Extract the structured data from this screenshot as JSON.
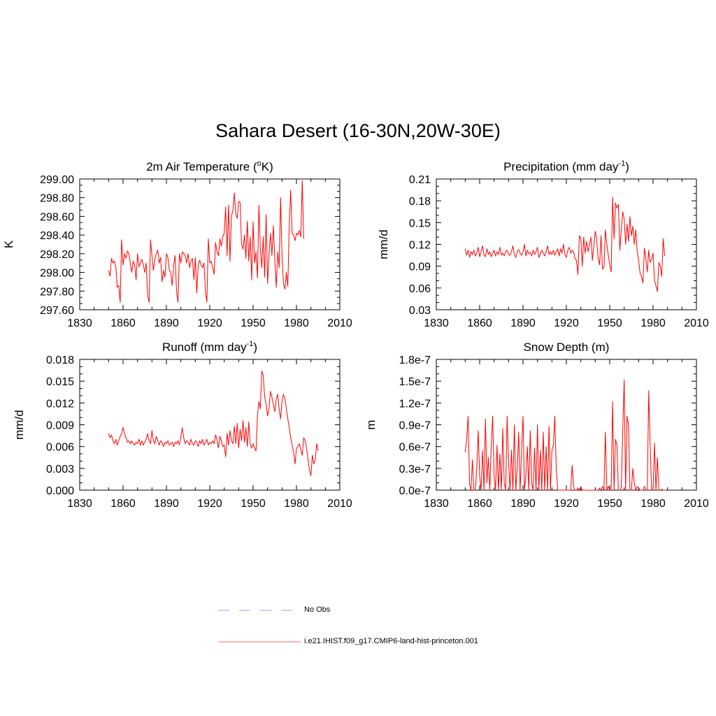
{
  "figure": {
    "title": "Sahara Desert (16-30N,20W-30E)",
    "colors": {
      "model": "#ff0000",
      "obs": "#9aa0ff",
      "axis": "#000000"
    }
  },
  "legend": {
    "items": [
      {
        "label": "No Obs",
        "style": "dashed",
        "color": "#9aa0ff"
      },
      {
        "label": "i.e21.IHIST.f09_g17.CMIP6-land-hist-princeton.001",
        "style": "solid",
        "color": "#ff0000"
      }
    ]
  },
  "chart_data": [
    {
      "type": "line",
      "title": "2m Air Temperature (°K)",
      "ylabel": "K",
      "xlim": [
        1830,
        2010
      ],
      "ylim": [
        297.6,
        299.0
      ],
      "xticks": [
        1830,
        1860,
        1890,
        1920,
        1950,
        1980,
        2010
      ],
      "yticks": [
        297.6,
        297.8,
        298.0,
        298.2,
        298.4,
        298.6,
        298.8,
        299.0
      ],
      "ytick_labels": [
        "297.60",
        "297.80",
        "298.00",
        "298.20",
        "298.40",
        "298.60",
        "298.80",
        "299.00"
      ],
      "series": [
        {
          "x_start": 1850,
          "x_step": 1,
          "values": [
            298.02,
            297.96,
            298.15,
            298.1,
            298.12,
            298.06,
            297.84,
            297.86,
            297.68,
            298.35,
            298.08,
            298.2,
            298.15,
            298.23,
            298.2,
            298.1,
            298.0,
            298.12,
            298.08,
            297.92,
            298.2,
            298.06,
            298.1,
            298.14,
            298.08,
            298.0,
            298.1,
            297.75,
            297.68,
            298.35,
            298.18,
            298.02,
            298.14,
            298.2,
            298.24,
            298.1,
            298.16,
            297.9,
            298.02,
            297.95,
            298.2,
            298.16,
            298.02,
            298.0,
            297.86,
            298.08,
            298.18,
            297.8,
            297.68,
            298.2,
            298.1,
            298.22,
            298.2,
            298.18,
            298.1,
            298.2,
            298.05,
            298.12,
            298.15,
            297.92,
            298.16,
            297.78,
            298.08,
            298.13,
            298.08,
            298.05,
            298.1,
            297.8,
            297.68,
            298.36,
            298.1,
            298.12,
            298.05,
            297.98,
            298.32,
            298.22,
            298.18,
            298.36,
            298.28,
            298.38,
            298.42,
            298.7,
            298.18,
            298.72,
            298.12,
            298.6,
            298.66,
            298.85,
            298.62,
            298.58,
            298.76,
            298.75,
            298.3,
            298.25,
            298.4,
            298.15,
            298.55,
            298.12,
            298.38,
            297.92,
            298.54,
            298.1,
            298.22,
            297.94,
            298.72,
            298.25,
            298.05,
            298.38,
            297.95,
            298.62,
            297.88,
            298.18,
            298.42,
            298.18,
            298.5,
            298.14,
            297.84,
            298.22,
            298.05,
            298.8,
            298.18,
            297.88,
            297.82,
            298.0,
            297.85,
            298.5,
            298.88,
            298.42,
            298.4,
            298.34,
            298.42,
            298.4,
            298.45,
            298.38,
            298.98,
            298.36
          ]
        }
      ]
    },
    {
      "type": "line",
      "title": "Precipitation (mm day-1)",
      "ylabel": "mm/d",
      "xlim": [
        1830,
        2010
      ],
      "ylim": [
        0.03,
        0.21
      ],
      "xticks": [
        1830,
        1860,
        1890,
        1920,
        1950,
        1980,
        2010
      ],
      "yticks": [
        0.03,
        0.06,
        0.09,
        0.12,
        0.15,
        0.18,
        0.21
      ],
      "ytick_labels": [
        "0.03",
        "0.06",
        "0.09",
        "0.12",
        "0.15",
        "0.18",
        "0.21"
      ],
      "series": [
        {
          "x_start": 1850,
          "x_step": 1,
          "values": [
            0.114,
            0.105,
            0.112,
            0.102,
            0.11,
            0.106,
            0.112,
            0.104,
            0.108,
            0.116,
            0.103,
            0.11,
            0.118,
            0.106,
            0.103,
            0.114,
            0.106,
            0.11,
            0.103,
            0.108,
            0.112,
            0.104,
            0.11,
            0.106,
            0.116,
            0.105,
            0.108,
            0.104,
            0.11,
            0.112,
            0.106,
            0.105,
            0.11,
            0.118,
            0.106,
            0.102,
            0.11,
            0.113,
            0.108,
            0.105,
            0.11,
            0.12,
            0.104,
            0.112,
            0.107,
            0.109,
            0.104,
            0.112,
            0.106,
            0.11,
            0.116,
            0.102,
            0.107,
            0.112,
            0.108,
            0.104,
            0.11,
            0.118,
            0.106,
            0.11,
            0.106,
            0.112,
            0.105,
            0.11,
            0.114,
            0.104,
            0.114,
            0.108,
            0.12,
            0.106,
            0.102,
            0.112,
            0.116,
            0.108,
            0.112,
            0.11,
            0.1,
            0.098,
            0.078,
            0.132,
            0.128,
            0.09,
            0.13,
            0.108,
            0.124,
            0.11,
            0.12,
            0.13,
            0.098,
            0.118,
            0.138,
            0.126,
            0.1,
            0.092,
            0.132,
            0.086,
            0.088,
            0.14,
            0.12,
            0.105,
            0.092,
            0.082,
            0.185,
            0.128,
            0.177,
            0.17,
            0.175,
            0.112,
            0.14,
            0.165,
            0.155,
            0.12,
            0.148,
            0.124,
            0.158,
            0.132,
            0.145,
            0.12,
            0.14,
            0.11,
            0.098,
            0.08,
            0.076,
            0.067,
            0.115,
            0.1,
            0.082,
            0.112,
            0.095,
            0.1,
            0.108,
            0.07,
            0.063,
            0.055,
            0.095,
            0.09,
            0.076,
            0.128,
            0.104
          ]
        }
      ]
    },
    {
      "type": "line",
      "title": "Runoff (mm day-1)",
      "ylabel": "mm/d",
      "xlim": [
        1830,
        2010
      ],
      "ylim": [
        0.0,
        0.018
      ],
      "xticks": [
        1830,
        1860,
        1890,
        1920,
        1950,
        1980,
        2010
      ],
      "yticks": [
        0.0,
        0.003,
        0.006,
        0.009,
        0.012,
        0.015,
        0.018
      ],
      "ytick_labels": [
        "0.000",
        "0.003",
        "0.006",
        "0.009",
        "0.012",
        "0.015",
        "0.018"
      ],
      "series": [
        {
          "x_start": 1850,
          "x_step": 1,
          "values": [
            0.0078,
            0.0072,
            0.0076,
            0.0068,
            0.0064,
            0.007,
            0.0062,
            0.0068,
            0.0074,
            0.0078,
            0.0086,
            0.0078,
            0.0072,
            0.0066,
            0.0068,
            0.0064,
            0.0068,
            0.0064,
            0.0062,
            0.0066,
            0.0064,
            0.007,
            0.0062,
            0.0068,
            0.0062,
            0.0066,
            0.007,
            0.0078,
            0.0068,
            0.0064,
            0.0082,
            0.0068,
            0.0064,
            0.0074,
            0.0068,
            0.0062,
            0.0068,
            0.0066,
            0.006,
            0.0066,
            0.0064,
            0.0068,
            0.0062,
            0.0064,
            0.0066,
            0.006,
            0.0066,
            0.0064,
            0.0068,
            0.0062,
            0.0074,
            0.0086,
            0.0072,
            0.0064,
            0.0068,
            0.0066,
            0.0062,
            0.007,
            0.0064,
            0.0062,
            0.0068,
            0.0066,
            0.006,
            0.0068,
            0.0064,
            0.007,
            0.0062,
            0.0066,
            0.007,
            0.0062,
            0.0066,
            0.0064,
            0.0068,
            0.0064,
            0.0076,
            0.007,
            0.0058,
            0.0074,
            0.0068,
            0.006,
            0.0062,
            0.0046,
            0.0078,
            0.0062,
            0.0082,
            0.0068,
            0.0064,
            0.0088,
            0.0064,
            0.0092,
            0.0058,
            0.0084,
            0.0068,
            0.0096,
            0.0066,
            0.0086,
            0.006,
            0.0094,
            0.0062,
            0.0058,
            0.0064,
            0.0058,
            0.0054,
            0.0102,
            0.0122,
            0.0112,
            0.0164,
            0.0158,
            0.0128,
            0.0118,
            0.0102,
            0.0112,
            0.0136,
            0.0128,
            0.0118,
            0.0108,
            0.0126,
            0.0132,
            0.0112,
            0.0098,
            0.0122,
            0.0132,
            0.0126,
            0.0112,
            0.0098,
            0.0086,
            0.0072,
            0.0062,
            0.0052,
            0.0036,
            0.0058,
            0.006,
            0.0064,
            0.0056,
            0.0048,
            0.0072,
            0.0068,
            0.0058,
            0.0042,
            0.0028,
            0.002,
            0.0048,
            0.0036,
            0.0042,
            0.0064,
            0.0054
          ]
        }
      ]
    },
    {
      "type": "line",
      "title": "Snow Depth (m)",
      "ylabel": "m",
      "xlim": [
        1830,
        2010
      ],
      "ylim": [
        0.0,
        1.8e-07
      ],
      "xticks": [
        1830,
        1860,
        1890,
        1920,
        1950,
        1980,
        2010
      ],
      "yticks": [
        0.0,
        3e-08,
        6e-08,
        9e-08,
        1.2e-07,
        1.5e-07,
        1.8e-07
      ],
      "ytick_labels": [
        "0.0e-7",
        "0.3e-7",
        "0.6e-7",
        "0.9e-7",
        "1.2e-7",
        "1.5e-7",
        "1.8e-7"
      ],
      "series": [
        {
          "x_start": 1850,
          "x_step": 1,
          "values": [
            5.2e-08,
            7e-08,
            1.02e-07,
            8e-09,
            0.0,
            4.2e-08,
            0.0,
            0.0,
            3e-08,
            8.2e-08,
            2e-08,
            0.0,
            5.5e-08,
            0.0,
            9.8e-08,
            1e-08,
            4.5e-08,
            0.0,
            6e-08,
            1.02e-07,
            2e-08,
            0.0,
            6.2e-08,
            0.0,
            5e-08,
            0.0,
            8.5e-08,
            1e-08,
            0.0,
            1.02e-07,
            4e-08,
            0.0,
            5.5e-08,
            0.0,
            9e-08,
            0.0,
            3e-08,
            8e-08,
            0.0,
            5.5e-08,
            1.02e-07,
            0.0,
            2e-08,
            6e-08,
            0.0,
            8.2e-08,
            1e-08,
            0.0,
            5.8e-08,
            0.0,
            9e-08,
            0.0,
            5.5e-08,
            0.0,
            8e-08,
            0.0,
            6e-08,
            0.0,
            8.8e-08,
            0.0,
            5.5e-08,
            6.2e-08,
            1.02e-07,
            3e-08,
            0.0,
            0.0,
            0.0,
            0.0,
            0.0,
            0.0,
            0.0,
            0.0,
            0.0,
            0.0,
            3.4e-08,
            5e-09,
            0.0,
            0.0,
            3e-09,
            0.0,
            5e-09,
            0.0,
            0.0,
            0.0,
            0.0,
            0.0,
            0.0,
            0.0,
            0.0,
            0.0,
            0.0,
            0.0,
            0.0,
            3e-09,
            0.0,
            5e-09,
            0.0,
            8e-08,
            0.0,
            5e-09,
            0.0,
            0.0,
            1.22e-07,
            0.0,
            7e-08,
            6.2e-08,
            0.0,
            0.0,
            3e-09,
            8e-08,
            1.52e-07,
            0.0,
            1.02e-07,
            9e-08,
            0.0,
            0.0,
            3e-08,
            1e-08,
            0.0,
            5e-09,
            3e-09,
            0.0,
            0.0,
            0.0,
            5e-09,
            0.0,
            0.0,
            1.37e-07,
            6e-08,
            0.0,
            0.0,
            6.5e-08,
            0.0,
            4.5e-08,
            0.0,
            0.0,
            1e-09,
            0.0,
            0.0,
            0.0
          ]
        }
      ]
    }
  ]
}
